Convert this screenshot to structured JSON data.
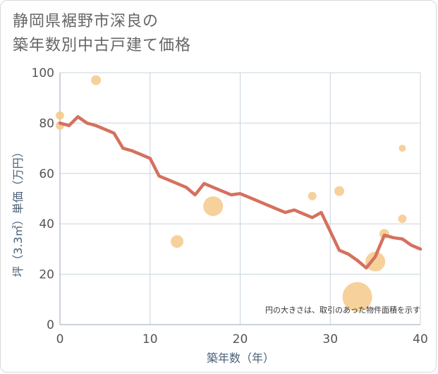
{
  "chart_data": {
    "type": "scatter",
    "title_lines": [
      "静岡県裾野市深良の",
      "築年数別中古戸建て価格"
    ],
    "xlabel": "築年数（年）",
    "ylabel": "坪（3.3㎡）単価（万円）",
    "note": "円の大きさは、取引のあった物件面積を示す",
    "xlim": [
      0,
      40
    ],
    "ylim": [
      0,
      100
    ],
    "x_ticks": [
      0,
      10,
      20,
      30,
      40
    ],
    "y_ticks": [
      0,
      20,
      40,
      60,
      80,
      100
    ],
    "grid": true,
    "colors": {
      "line": "#d4715e",
      "bubble": "#f5c98a",
      "grid": "#c8d4de",
      "axis": "#9aaab8"
    },
    "trend_line": {
      "x": [
        0,
        1,
        2,
        3,
        4,
        5,
        6,
        7,
        8,
        9,
        10,
        11,
        12,
        13,
        14,
        15,
        16,
        17,
        18,
        19,
        20,
        21,
        22,
        23,
        24,
        25,
        26,
        27,
        28,
        29,
        30,
        31,
        32,
        33,
        34,
        35,
        36,
        37,
        38,
        39,
        40
      ],
      "y": [
        80,
        79,
        82.5,
        80,
        79,
        77.5,
        76,
        70,
        69,
        67.5,
        66,
        59,
        57.5,
        56,
        54.5,
        51.5,
        56,
        54.5,
        53,
        51.5,
        52,
        50.5,
        49,
        47.5,
        46,
        44.5,
        45.5,
        44,
        42.5,
        44.5,
        37,
        29.5,
        28,
        25.5,
        22.5,
        27,
        35.5,
        34.5,
        34,
        31.5,
        30
      ]
    },
    "bubbles": [
      {
        "x": 0,
        "y": 83,
        "size": 6
      },
      {
        "x": 0,
        "y": 79,
        "size": 6
      },
      {
        "x": 4,
        "y": 97,
        "size": 7
      },
      {
        "x": 13,
        "y": 33,
        "size": 9
      },
      {
        "x": 17,
        "y": 47,
        "size": 14
      },
      {
        "x": 28,
        "y": 51,
        "size": 6
      },
      {
        "x": 31,
        "y": 53,
        "size": 7
      },
      {
        "x": 33,
        "y": 11,
        "size": 21
      },
      {
        "x": 35,
        "y": 25,
        "size": 14
      },
      {
        "x": 36,
        "y": 36,
        "size": 7
      },
      {
        "x": 38,
        "y": 70,
        "size": 5
      },
      {
        "x": 38,
        "y": 42,
        "size": 6
      }
    ]
  }
}
